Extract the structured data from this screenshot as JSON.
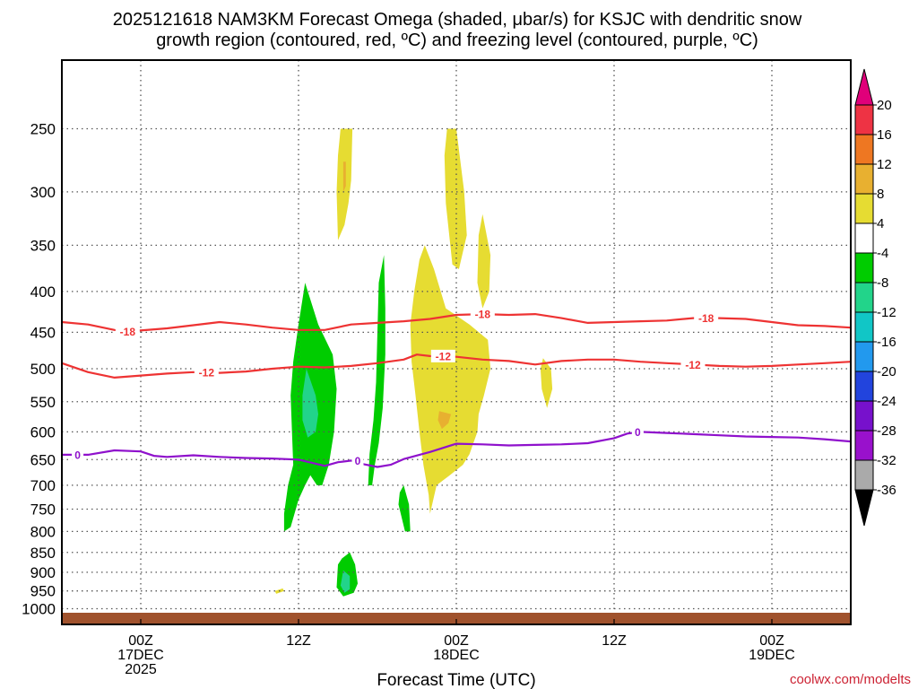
{
  "chart_data": {
    "type": "contour-time-height",
    "title_line1": "2025121618 NAM3KM Forecast Omega (shaded, μbar/s) for KSJC with dendritic snow",
    "title_line2": "growth region (contoured, red, ºC) and freezing level (contoured, purple, ºC)",
    "xlabel": "Forecast Time (UTC)",
    "credit": "coolwx.com/modelts",
    "x_range_hours": [
      -6,
      54
    ],
    "y_range_mb": [
      1025,
      200
    ],
    "y_ticks": [
      "250",
      "300",
      "350",
      "400",
      "450",
      "500",
      "550",
      "600",
      "650",
      "700",
      "750",
      "800",
      "850",
      "900",
      "950",
      "1000"
    ],
    "x_ticks": [
      {
        "hour": 0,
        "lines": [
          "00Z",
          "17DEC",
          "2025"
        ]
      },
      {
        "hour": 12,
        "lines": [
          "12Z"
        ]
      },
      {
        "hour": 24,
        "lines": [
          "00Z",
          "18DEC"
        ]
      },
      {
        "hour": 36,
        "lines": [
          "12Z"
        ]
      },
      {
        "hour": 48,
        "lines": [
          "00Z",
          "19DEC"
        ]
      }
    ],
    "colorbar": {
      "labels": [
        "20",
        "16",
        "12",
        "8",
        "4",
        "-4",
        "-8",
        "-12",
        "-16",
        "-20",
        "-24",
        "-28",
        "-32",
        "-36"
      ],
      "colors": [
        "#e0007a",
        "#ee3344",
        "#ee7722",
        "#e8b030",
        "#e6dc32",
        "#ffffff",
        "#00cc00",
        "#22d48a",
        "#11c6c6",
        "#2299ee",
        "#2244dd",
        "#7711cc",
        "#9911cc",
        "#aaaaaa",
        "#000000"
      ]
    },
    "contours": [
      {
        "name": "-18 C isotherm",
        "color": "#ee3333",
        "label": "-18",
        "points": [
          [
            -6,
            437
          ],
          [
            -4,
            440
          ],
          [
            -2,
            447
          ],
          [
            -1,
            449
          ],
          [
            2,
            445
          ],
          [
            4,
            441
          ],
          [
            6,
            437
          ],
          [
            8,
            440
          ],
          [
            10,
            444
          ],
          [
            12,
            447
          ],
          [
            14,
            447
          ],
          [
            16,
            440
          ],
          [
            18,
            438
          ],
          [
            20,
            436
          ],
          [
            22,
            433
          ],
          [
            24,
            428
          ],
          [
            26,
            427
          ],
          [
            28,
            428
          ],
          [
            30,
            427
          ],
          [
            32,
            432
          ],
          [
            34,
            438
          ],
          [
            36,
            437
          ],
          [
            38,
            436
          ],
          [
            40,
            435
          ],
          [
            42,
            432
          ],
          [
            44,
            432
          ],
          [
            46,
            433
          ],
          [
            48,
            437
          ],
          [
            50,
            441
          ],
          [
            52,
            442
          ],
          [
            54,
            444
          ]
        ],
        "label_hours": [
          -1,
          26,
          43
        ]
      },
      {
        "name": "-12 C isotherm",
        "color": "#ee3333",
        "label": "-12",
        "points": [
          [
            -6,
            492
          ],
          [
            -4,
            505
          ],
          [
            -2,
            513
          ],
          [
            0,
            510
          ],
          [
            2,
            507
          ],
          [
            4,
            505
          ],
          [
            6,
            506
          ],
          [
            8,
            504
          ],
          [
            10,
            500
          ],
          [
            12,
            497
          ],
          [
            14,
            498
          ],
          [
            16,
            496
          ],
          [
            18,
            492
          ],
          [
            20,
            487
          ],
          [
            21,
            480
          ],
          [
            22,
            482
          ],
          [
            24,
            483
          ],
          [
            26,
            487
          ],
          [
            28,
            489
          ],
          [
            30,
            494
          ],
          [
            32,
            489
          ],
          [
            34,
            487
          ],
          [
            36,
            487
          ],
          [
            38,
            490
          ],
          [
            40,
            492
          ],
          [
            42,
            494
          ],
          [
            44,
            496
          ],
          [
            46,
            497
          ],
          [
            48,
            496
          ],
          [
            50,
            494
          ],
          [
            52,
            492
          ],
          [
            54,
            490
          ]
        ],
        "label_hours": [
          5,
          23,
          42
        ]
      },
      {
        "name": "0 C freezing level",
        "color": "#8f11cc",
        "label": "0",
        "points": [
          [
            -6,
            641
          ],
          [
            -4,
            641
          ],
          [
            -2,
            633
          ],
          [
            0,
            635
          ],
          [
            1,
            643
          ],
          [
            2,
            645
          ],
          [
            4,
            642
          ],
          [
            6,
            645
          ],
          [
            8,
            647
          ],
          [
            10,
            648
          ],
          [
            12,
            650
          ],
          [
            13,
            656
          ],
          [
            14,
            662
          ],
          [
            15,
            655
          ],
          [
            16,
            652
          ],
          [
            17,
            659
          ],
          [
            18,
            664
          ],
          [
            19,
            660
          ],
          [
            20,
            649
          ],
          [
            22,
            636
          ],
          [
            24,
            621
          ],
          [
            26,
            622
          ],
          [
            28,
            624
          ],
          [
            30,
            623
          ],
          [
            32,
            622
          ],
          [
            34,
            620
          ],
          [
            36,
            611
          ],
          [
            37,
            603
          ],
          [
            38,
            600
          ],
          [
            40,
            602
          ],
          [
            42,
            604
          ],
          [
            44,
            606
          ],
          [
            46,
            608
          ],
          [
            48,
            609
          ],
          [
            50,
            610
          ],
          [
            52,
            613
          ],
          [
            54,
            617
          ]
        ],
        "label_hours": [
          -4.8,
          16.5,
          37.8
        ]
      }
    ],
    "shaded_regions": [
      {
        "name": "omega 4-8 upper narrow band",
        "fill_index": 4,
        "points": [
          [
            15.2,
            250
          ],
          [
            16.1,
            250
          ],
          [
            16.0,
            290
          ],
          [
            15.8,
            310
          ],
          [
            15.5,
            330
          ],
          [
            15.0,
            345
          ],
          [
            14.9,
            300
          ],
          [
            15.0,
            270
          ]
        ]
      },
      {
        "name": "omega 8-12 upper spot",
        "fill_index": 3,
        "points": [
          [
            15.4,
            275
          ],
          [
            15.6,
            275
          ],
          [
            15.6,
            295
          ],
          [
            15.4,
            300
          ]
        ]
      },
      {
        "name": "omega 4-8 upper band 2",
        "fill_index": 4,
        "points": [
          [
            23.3,
            250
          ],
          [
            24.0,
            250
          ],
          [
            24.6,
            300
          ],
          [
            24.8,
            340
          ],
          [
            24.2,
            375
          ],
          [
            23.7,
            370
          ],
          [
            23.2,
            310
          ],
          [
            23.1,
            270
          ]
        ]
      },
      {
        "name": "omega 4-8 band 3",
        "fill_index": 4,
        "points": [
          [
            26.0,
            320
          ],
          [
            26.6,
            360
          ],
          [
            26.5,
            400
          ],
          [
            26.0,
            420
          ],
          [
            25.6,
            390
          ],
          [
            25.7,
            340
          ]
        ]
      },
      {
        "name": "omega 4-8 main lobe",
        "fill_index": 4,
        "points": [
          [
            21.6,
            350
          ],
          [
            22.3,
            375
          ],
          [
            23.2,
            420
          ],
          [
            25.0,
            440
          ],
          [
            26.4,
            460
          ],
          [
            26.6,
            500
          ],
          [
            26.1,
            540
          ],
          [
            25.7,
            570
          ],
          [
            25.6,
            600
          ],
          [
            25.0,
            640
          ],
          [
            24.5,
            660
          ],
          [
            23.5,
            680
          ],
          [
            22.5,
            700
          ],
          [
            22.0,
            760
          ],
          [
            21.9,
            720
          ],
          [
            21.5,
            660
          ],
          [
            21.2,
            600
          ],
          [
            20.9,
            540
          ],
          [
            20.6,
            490
          ],
          [
            20.5,
            440
          ],
          [
            20.8,
            400
          ],
          [
            21.2,
            365
          ]
        ]
      },
      {
        "name": "omega 8-12 mid spot",
        "fill_index": 3,
        "points": [
          [
            22.7,
            565
          ],
          [
            23.6,
            570
          ],
          [
            23.4,
            585
          ],
          [
            22.9,
            595
          ],
          [
            22.6,
            580
          ]
        ]
      },
      {
        "name": "omega 4-8 east spot",
        "fill_index": 4,
        "points": [
          [
            30.6,
            485
          ],
          [
            31.2,
            500
          ],
          [
            31.3,
            530
          ],
          [
            30.9,
            560
          ],
          [
            30.5,
            530
          ],
          [
            30.4,
            500
          ]
        ]
      },
      {
        "name": "omega -4 to -8 main column",
        "fill_index": 6,
        "points": [
          [
            12.5,
            390
          ],
          [
            13.5,
            440
          ],
          [
            14.6,
            480
          ],
          [
            14.9,
            530
          ],
          [
            14.7,
            600
          ],
          [
            14.3,
            660
          ],
          [
            13.8,
            700
          ],
          [
            13.4,
            700
          ],
          [
            12.9,
            680
          ],
          [
            12.5,
            700
          ],
          [
            12.0,
            730
          ],
          [
            11.4,
            790
          ],
          [
            10.9,
            800
          ],
          [
            10.9,
            760
          ],
          [
            11.2,
            700
          ],
          [
            11.6,
            660
          ],
          [
            11.5,
            600
          ],
          [
            11.4,
            540
          ],
          [
            11.6,
            490
          ],
          [
            12.0,
            440
          ]
        ]
      },
      {
        "name": "omega -8 to -12 core",
        "fill_index": 7,
        "points": [
          [
            12.6,
            500
          ],
          [
            13.3,
            540
          ],
          [
            13.5,
            570
          ],
          [
            13.3,
            600
          ],
          [
            12.7,
            610
          ],
          [
            12.3,
            580
          ],
          [
            12.3,
            540
          ]
        ]
      },
      {
        "name": "omega -4 to -8 narrow column",
        "fill_index": 6,
        "points": [
          [
            18.5,
            360
          ],
          [
            18.6,
            420
          ],
          [
            18.6,
            480
          ],
          [
            18.4,
            560
          ],
          [
            18.1,
            620
          ],
          [
            17.8,
            660
          ],
          [
            17.6,
            700
          ],
          [
            17.3,
            700
          ],
          [
            17.4,
            640
          ],
          [
            17.7,
            580
          ],
          [
            17.9,
            520
          ],
          [
            18.0,
            450
          ],
          [
            18.1,
            390
          ]
        ]
      },
      {
        "name": "omega -4 to -8 low spot",
        "fill_index": 6,
        "points": [
          [
            20.0,
            700
          ],
          [
            20.4,
            740
          ],
          [
            20.5,
            800
          ],
          [
            20.1,
            800
          ],
          [
            19.6,
            740
          ],
          [
            19.7,
            715
          ]
        ]
      },
      {
        "name": "omega -4 to -8 bottom blob",
        "fill_index": 6,
        "points": [
          [
            15.9,
            850
          ],
          [
            16.3,
            880
          ],
          [
            16.5,
            930
          ],
          [
            16.2,
            955
          ],
          [
            15.4,
            965
          ],
          [
            14.9,
            940
          ],
          [
            15.0,
            880
          ],
          [
            15.3,
            865
          ]
        ]
      },
      {
        "name": "omega -8 to -12 bottom core",
        "fill_index": 7,
        "points": [
          [
            15.4,
            895
          ],
          [
            15.9,
            910
          ],
          [
            15.9,
            945
          ],
          [
            15.5,
            955
          ],
          [
            15.2,
            935
          ]
        ]
      },
      {
        "name": "omega 4-8 near-surface sliver",
        "fill_index": 4,
        "points": [
          [
            10.2,
            950
          ],
          [
            10.8,
            943
          ],
          [
            10.9,
            950
          ],
          [
            10.3,
            958
          ]
        ]
      }
    ]
  }
}
